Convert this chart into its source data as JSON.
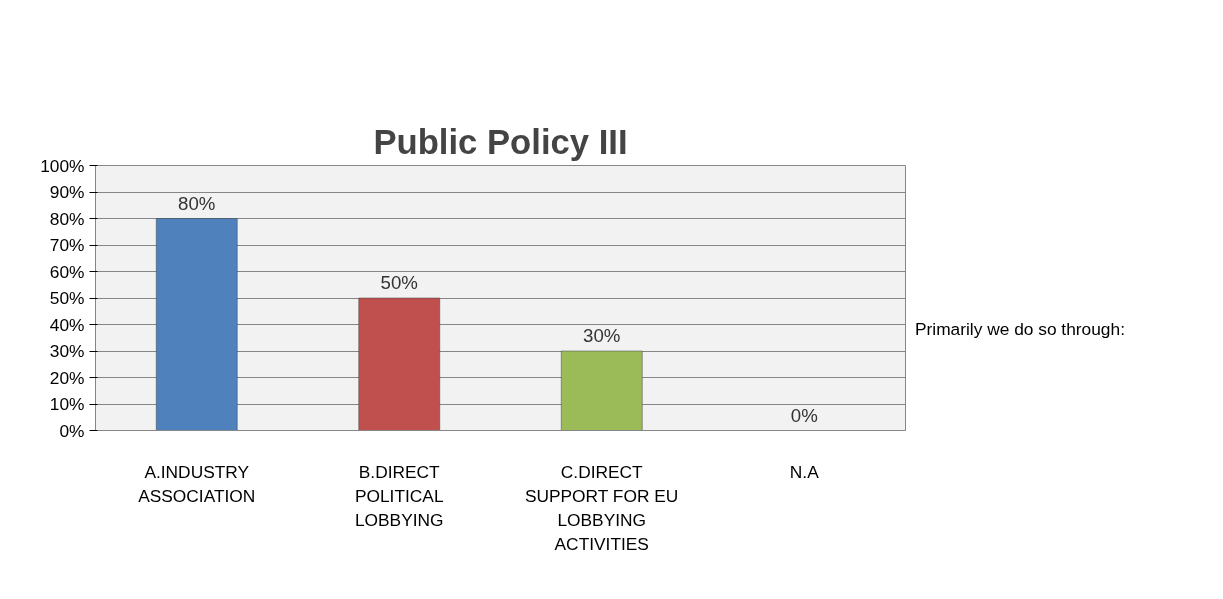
{
  "chart_data": {
    "type": "bar",
    "title": "Public Policy III",
    "categories": [
      "A.INDUSTRY ASSOCIATION",
      "B.DIRECT POLITICAL LOBBYING",
      "C.DIRECT SUPPORT FOR EU LOBBYING ACTIVITIES",
      "N.A"
    ],
    "values": [
      80,
      50,
      30,
      0
    ],
    "colors": [
      "#4f81bd",
      "#c0504d",
      "#9bbb59",
      null
    ],
    "value_labels": [
      "80%",
      "50%",
      "30%",
      "0%"
    ],
    "ylim": [
      0,
      100
    ],
    "yticks": [
      {
        "value": 0,
        "label": "0%"
      },
      {
        "value": 10,
        "label": "10%"
      },
      {
        "value": 20,
        "label": "20%"
      },
      {
        "value": 30,
        "label": "30%"
      },
      {
        "value": 40,
        "label": "40%"
      },
      {
        "value": 50,
        "label": "50%"
      },
      {
        "value": 60,
        "label": "60%"
      },
      {
        "value": 70,
        "label": "70%"
      },
      {
        "value": 80,
        "label": "80%"
      },
      {
        "value": 90,
        "label": "90%"
      },
      {
        "value": 100,
        "label": "100%"
      }
    ],
    "annotations": [
      "Primarily we do so through:"
    ],
    "grid": "y"
  }
}
